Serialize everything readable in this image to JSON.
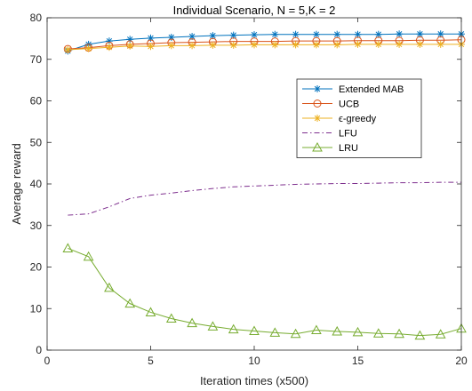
{
  "chart_data": {
    "type": "line",
    "title": "Individual Scenario, N = 5,K = 2",
    "xlabel": "Iteration times (x500)",
    "ylabel": "Average reward",
    "xlim": [
      0,
      20
    ],
    "ylim": [
      0,
      80
    ],
    "xticks": [
      0,
      5,
      10,
      15,
      20
    ],
    "yticks": [
      0,
      10,
      20,
      30,
      40,
      50,
      60,
      70,
      80
    ],
    "grid": false,
    "legend_position": "top-right",
    "x": [
      1,
      2,
      3,
      4,
      5,
      6,
      7,
      8,
      9,
      10,
      11,
      12,
      13,
      14,
      15,
      16,
      17,
      18,
      19,
      20
    ],
    "series": [
      {
        "name": "Extended MAB",
        "color": "#0072BD",
        "marker": "asterisk",
        "dash": "solid",
        "values": [
          72.0,
          73.6,
          74.4,
          74.8,
          75.1,
          75.3,
          75.5,
          75.7,
          75.8,
          75.9,
          76.0,
          76.0,
          76.0,
          76.0,
          76.0,
          76.0,
          76.1,
          76.1,
          76.1,
          76.1
        ]
      },
      {
        "name": "UCB",
        "color": "#D95319",
        "marker": "circle",
        "dash": "solid",
        "values": [
          72.5,
          72.8,
          73.3,
          73.6,
          73.8,
          74.0,
          74.1,
          74.2,
          74.3,
          74.3,
          74.3,
          74.4,
          74.4,
          74.4,
          74.5,
          74.5,
          74.5,
          74.6,
          74.6,
          74.7
        ]
      },
      {
        "name": "ϵ-greedy",
        "color": "#EDB120",
        "marker": "asterisk",
        "dash": "solid",
        "values": [
          72.3,
          72.6,
          72.9,
          73.2,
          73.1,
          73.3,
          73.3,
          73.4,
          73.4,
          73.5,
          73.5,
          73.5,
          73.5,
          73.5,
          73.6,
          73.6,
          73.6,
          73.6,
          73.6,
          73.6
        ]
      },
      {
        "name": "LFU",
        "color": "#7E2F8E",
        "marker": "none",
        "dash": "dashdot",
        "values": [
          32.5,
          32.8,
          34.5,
          36.5,
          37.3,
          37.8,
          38.4,
          38.9,
          39.3,
          39.5,
          39.7,
          39.9,
          40.0,
          40.1,
          40.1,
          40.2,
          40.3,
          40.3,
          40.4,
          40.4
        ]
      },
      {
        "name": "LRU",
        "color": "#77AC30",
        "marker": "triangle",
        "dash": "solid",
        "values": [
          24.5,
          22.5,
          15.0,
          11.2,
          9.1,
          7.6,
          6.5,
          5.7,
          5.0,
          4.6,
          4.2,
          3.9,
          4.8,
          4.5,
          4.3,
          4.0,
          3.9,
          3.5,
          3.8,
          5.2
        ]
      }
    ]
  }
}
